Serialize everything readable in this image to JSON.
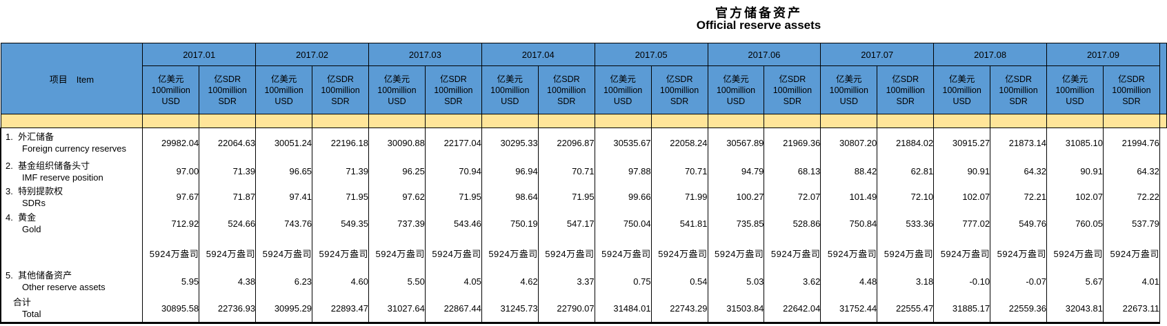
{
  "title": {
    "zh": "官方储备资产",
    "en": "Official reserve assets"
  },
  "header": {
    "item": "项目　Item",
    "months": [
      "2017.01",
      "2017.02",
      "2017.03",
      "2017.04",
      "2017.05",
      "2017.06",
      "2017.07",
      "2017.08",
      "2017.09"
    ],
    "usd_unit": [
      "亿美元",
      "100million",
      "USD"
    ],
    "sdr_unit": [
      "亿SDR",
      "100million",
      "SDR"
    ]
  },
  "colors": {
    "header_blue": "#5B9BD5",
    "band_yellow": "#FFE599",
    "border": "#000000"
  },
  "chart_data": {
    "type": "table",
    "title": "官方储备资产 Official reserve assets",
    "months": [
      "2017.01",
      "2017.02",
      "2017.03",
      "2017.04",
      "2017.05",
      "2017.06",
      "2017.07",
      "2017.08",
      "2017.09"
    ],
    "units": [
      "亿美元 100million USD",
      "亿SDR 100million SDR"
    ],
    "rows": [
      {
        "no": "1.",
        "zh": "外汇储备",
        "en": "Foreign currency reserves",
        "usd": [
          29982.04,
          30051.24,
          30090.88,
          30295.33,
          30535.67,
          30567.89,
          30807.2,
          30915.27,
          31085.1
        ],
        "sdr": [
          22064.63,
          22196.18,
          22177.04,
          22096.87,
          22058.24,
          21969.36,
          21884.02,
          21873.14,
          21994.76
        ]
      },
      {
        "no": "2.",
        "zh": "基金组织储备头寸",
        "en": "IMF reserve position",
        "usd": [
          97.0,
          96.65,
          96.25,
          96.94,
          97.88,
          94.79,
          88.42,
          90.91,
          90.91
        ],
        "sdr": [
          71.39,
          71.39,
          70.94,
          70.71,
          70.71,
          68.13,
          62.81,
          64.32,
          64.32
        ]
      },
      {
        "no": "3.",
        "zh": "特别提款权",
        "en": "SDRs",
        "usd": [
          97.67,
          97.41,
          97.62,
          98.64,
          99.66,
          100.27,
          101.49,
          102.07,
          102.07
        ],
        "sdr": [
          71.87,
          71.95,
          71.95,
          71.95,
          71.99,
          72.07,
          72.1,
          72.21,
          72.22
        ]
      },
      {
        "no": "4.",
        "zh": "黄金",
        "en": "Gold",
        "usd": [
          712.92,
          743.76,
          737.39,
          750.19,
          750.04,
          735.85,
          750.84,
          777.02,
          760.05
        ],
        "sdr": [
          524.66,
          549.35,
          543.46,
          547.17,
          541.81,
          528.86,
          533.36,
          549.76,
          537.79
        ],
        "sub_unit": "5924万盎司"
      },
      {
        "no": "5.",
        "zh": "其他储备资产",
        "en": "Other reserve assets",
        "usd": [
          5.95,
          6.23,
          5.5,
          4.62,
          0.75,
          5.03,
          4.48,
          -0.1,
          5.67
        ],
        "sdr": [
          4.38,
          4.6,
          4.05,
          3.37,
          0.54,
          3.62,
          3.18,
          -0.07,
          4.01
        ]
      },
      {
        "no": "",
        "zh": "合计",
        "en": "Total",
        "usd": [
          30895.58,
          30995.29,
          31027.64,
          31245.73,
          31484.01,
          31503.84,
          31752.44,
          31885.17,
          32043.81
        ],
        "sdr": [
          22736.93,
          22893.47,
          22867.44,
          22790.07,
          22743.29,
          22642.04,
          22555.47,
          22559.36,
          22673.11
        ]
      }
    ]
  }
}
